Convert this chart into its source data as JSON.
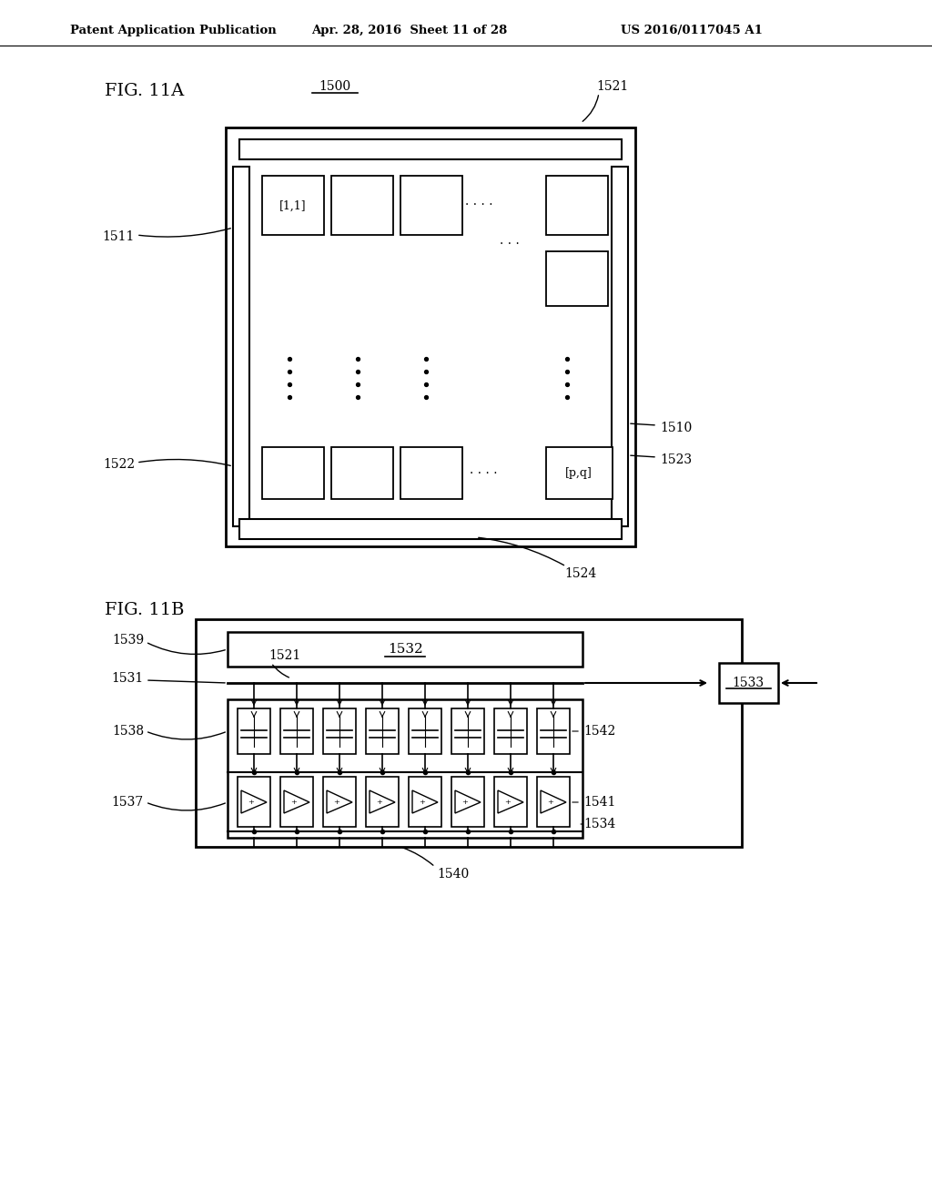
{
  "bg_color": "#ffffff",
  "header_text1": "Patent Application Publication",
  "header_text2": "Apr. 28, 2016  Sheet 11 of 28",
  "header_text3": "US 2016/0117045 A1",
  "fig11a_label": "FIG. 11A",
  "fig11b_label": "FIG. 11B",
  "label_1500": "1500",
  "label_1521_a": "1521",
  "label_1511": "1511",
  "label_1510": "1510",
  "label_1522": "1522",
  "label_1523": "1523",
  "label_1524": "1524",
  "label_1521_b": "1521",
  "label_1532": "1532",
  "label_1533": "1533",
  "label_1539": "1539",
  "label_1531": "1531",
  "label_1538": "1538",
  "label_1537": "1537",
  "label_1542": "1542",
  "label_1541": "1541",
  "label_1534": "1534",
  "label_1540": "1540"
}
